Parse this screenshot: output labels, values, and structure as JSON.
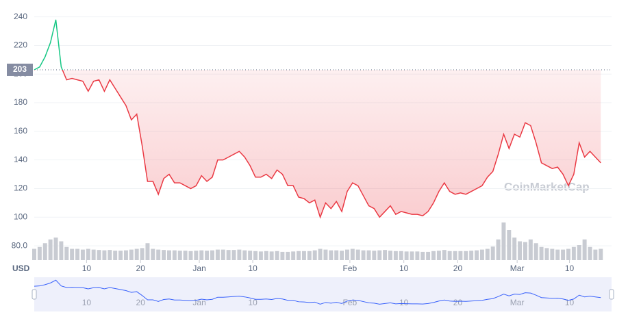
{
  "chart_data": {
    "type": "line",
    "x": [
      0,
      1,
      2,
      3,
      4,
      5,
      6,
      7,
      8,
      9,
      10,
      11,
      12,
      13,
      14,
      15,
      16,
      17,
      18,
      19,
      20,
      21,
      22,
      23,
      24,
      25,
      26,
      27,
      28,
      29,
      30,
      31,
      32,
      33,
      34,
      35,
      36,
      37,
      38,
      39,
      40,
      41,
      42,
      43,
      44,
      45,
      46,
      47,
      48,
      49,
      50,
      51,
      52,
      53,
      54,
      55,
      56,
      57,
      58,
      59,
      60,
      61,
      62,
      63,
      64,
      65,
      66,
      67,
      68,
      69,
      70,
      71,
      72,
      73,
      74,
      75,
      76,
      77,
      78,
      79,
      80,
      81,
      82,
      83,
      84,
      85,
      86,
      87,
      88,
      89,
      90,
      91,
      92,
      93,
      94,
      95,
      96,
      97,
      98,
      99,
      100,
      101,
      102,
      103,
      104,
      105
    ],
    "series": [
      {
        "color": "#ea3943",
        "up_color": "#16c784",
        "values": [
          203,
          205,
          212,
          222,
          238,
          205,
          196,
          197,
          196,
          195,
          188,
          195,
          196,
          188,
          196,
          190,
          184,
          178,
          168,
          172,
          150,
          125,
          125,
          116,
          127,
          130,
          124,
          124,
          122,
          120,
          122,
          129,
          125,
          128,
          140,
          140,
          142,
          144,
          146,
          142,
          136,
          128,
          128,
          130,
          127,
          133,
          130,
          122,
          122,
          114,
          113,
          110,
          112,
          100,
          110,
          106,
          111,
          104,
          118,
          124,
          122,
          115,
          108,
          106,
          100,
          104,
          108,
          102,
          104,
          103,
          102,
          102,
          101,
          104,
          110,
          118,
          124,
          118,
          116,
          117,
          116,
          118,
          120,
          122,
          128,
          132,
          144,
          158,
          148,
          158,
          156,
          166,
          164,
          152,
          138,
          136,
          134,
          135,
          130,
          122,
          130,
          152,
          142,
          146,
          142,
          138
        ]
      },
      {
        "color": "#c8cbd2",
        "values": [
          30,
          35,
          45,
          55,
          60,
          50,
          35,
          30,
          30,
          28,
          30,
          28,
          27,
          26,
          27,
          25,
          25,
          26,
          28,
          30,
          32,
          45,
          30,
          28,
          27,
          26,
          26,
          25,
          25,
          24,
          25,
          26,
          25,
          26,
          28,
          28,
          27,
          27,
          28,
          26,
          25,
          24,
          23,
          24,
          23,
          24,
          22,
          22,
          23,
          24,
          24,
          24,
          26,
          30,
          28,
          26,
          26,
          25,
          28,
          30,
          28,
          26,
          26,
          25,
          26,
          27,
          25,
          24,
          24,
          23,
          23,
          23,
          22,
          22,
          24,
          25,
          27,
          24,
          24,
          24,
          24,
          25,
          26,
          28,
          30,
          36,
          55,
          100,
          80,
          60,
          50,
          48,
          55,
          45,
          35,
          32,
          30,
          28,
          28,
          30,
          35,
          40,
          55,
          35,
          28,
          30
        ]
      }
    ],
    "ylim": [
      70,
      247
    ],
    "xlim": [
      0,
      107
    ],
    "yticks": [
      {
        "value": 80,
        "label": "80.0"
      },
      100,
      120,
      140,
      160,
      180,
      200,
      220,
      240
    ],
    "xticks": [
      {
        "value": 9.7,
        "label": "10"
      },
      {
        "value": 19.7,
        "label": "20"
      },
      {
        "value": 30.6,
        "label": "Jan"
      },
      {
        "value": 40.5,
        "label": "10"
      },
      {
        "value": 58.5,
        "label": "Feb"
      },
      {
        "value": 68.5,
        "label": "10"
      },
      {
        "value": 78.5,
        "label": "20"
      },
      {
        "value": 89.5,
        "label": "Mar"
      },
      {
        "value": 99.2,
        "label": "10"
      }
    ],
    "baseline": 203,
    "currency": "USD",
    "watermark": "CoinMarketCap",
    "grid": true
  }
}
